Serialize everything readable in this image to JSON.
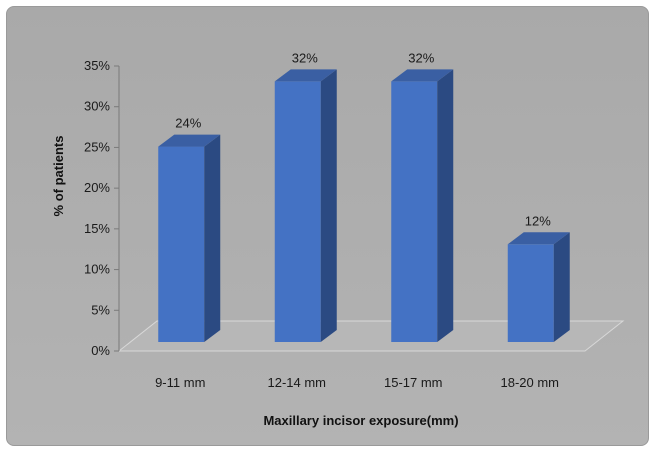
{
  "chart_data": {
    "type": "bar",
    "title": "",
    "xlabel": "Maxillary incisor exposure(mm)",
    "ylabel": "% of patients",
    "categories": [
      "9-11 mm",
      "12-14 mm",
      "15-17 mm",
      "18-20 mm"
    ],
    "values": [
      24,
      32,
      32,
      12
    ],
    "data_labels": [
      "24%",
      "32%",
      "32%",
      "12%"
    ],
    "ylim": [
      0,
      35
    ],
    "yticks": [
      0,
      5,
      10,
      15,
      20,
      25,
      30,
      35
    ],
    "ytick_labels": [
      "0%",
      "5%",
      "10%",
      "15%",
      "20%",
      "25%",
      "30%",
      "35%"
    ],
    "grid": false,
    "legend": "none",
    "style": "3d-column",
    "bar_color": "#4472c4",
    "bar_side_color": "#2b4a82",
    "bar_top_color": "#3a5fa3",
    "background_color": "#ababab"
  }
}
